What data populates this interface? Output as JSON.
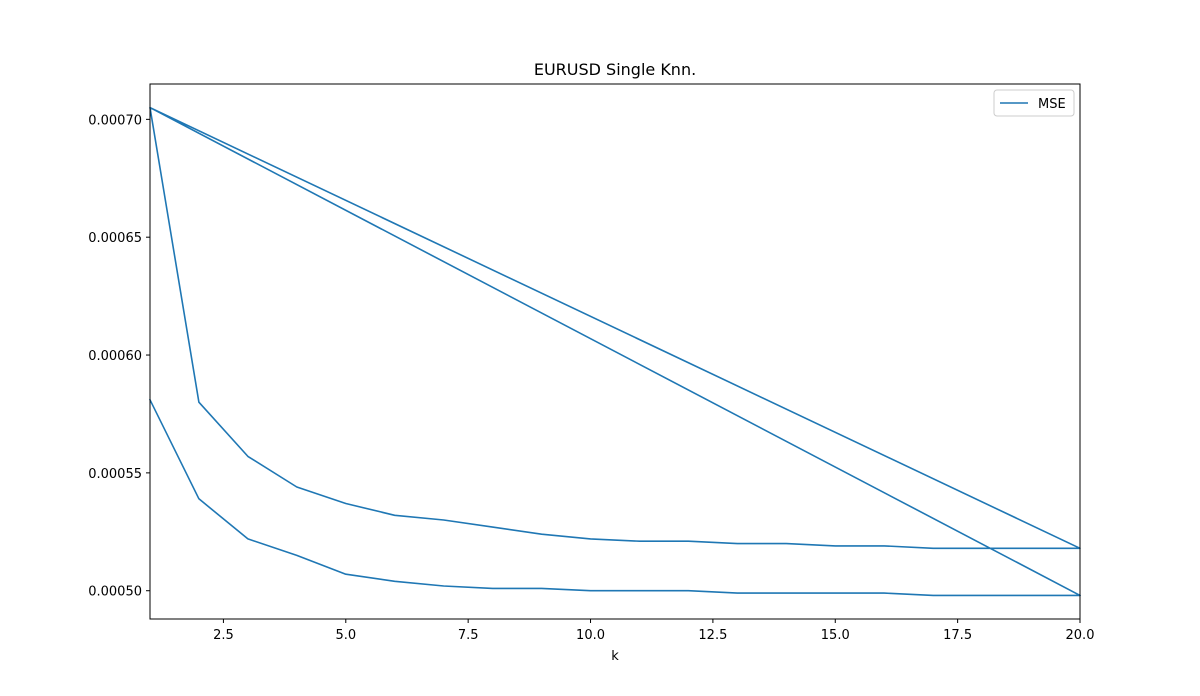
{
  "chart_data": {
    "type": "line",
    "title": "EURUSD Single Knn.",
    "xlabel": "k",
    "ylabel": "",
    "xlim": [
      1,
      20
    ],
    "ylim": [
      0.000488,
      0.000715
    ],
    "x_ticks": [
      2.5,
      5.0,
      7.5,
      10.0,
      12.5,
      15.0,
      17.5,
      20.0
    ],
    "x_tick_labels": [
      "2.5",
      "5.0",
      "7.5",
      "10.0",
      "12.5",
      "15.0",
      "17.5",
      "20.0"
    ],
    "y_ticks": [
      0.0005,
      0.00055,
      0.0006,
      0.00065,
      0.0007
    ],
    "y_tick_labels": [
      "0.00050",
      "0.00055",
      "0.00060",
      "0.00065",
      "0.00070"
    ],
    "grid": false,
    "legend_position": "top-right",
    "series": [
      {
        "name": "MSE",
        "color": "#1f77b4",
        "points": [
          [
            1,
            0.000581
          ],
          [
            2,
            0.000539
          ],
          [
            3,
            0.000522
          ],
          [
            4,
            0.000515
          ],
          [
            5,
            0.000507
          ],
          [
            6,
            0.000504
          ],
          [
            7,
            0.000502
          ],
          [
            8,
            0.000501
          ],
          [
            9,
            0.000501
          ],
          [
            10,
            0.0005
          ],
          [
            11,
            0.0005
          ],
          [
            12,
            0.0005
          ],
          [
            13,
            0.000499
          ],
          [
            14,
            0.000499
          ],
          [
            15,
            0.000499
          ],
          [
            16,
            0.000499
          ],
          [
            17,
            0.000498
          ],
          [
            18,
            0.000498
          ],
          [
            19,
            0.000498
          ],
          [
            20,
            0.000498
          ],
          [
            1,
            0.000705
          ],
          [
            2,
            0.00058
          ],
          [
            3,
            0.000557
          ],
          [
            4,
            0.000544
          ],
          [
            5,
            0.000537
          ],
          [
            6,
            0.000532
          ],
          [
            7,
            0.00053
          ],
          [
            8,
            0.000527
          ],
          [
            9,
            0.000524
          ],
          [
            10,
            0.000522
          ],
          [
            11,
            0.000521
          ],
          [
            12,
            0.000521
          ],
          [
            13,
            0.00052
          ],
          [
            14,
            0.00052
          ],
          [
            15,
            0.000519
          ],
          [
            16,
            0.000519
          ],
          [
            17,
            0.000518
          ],
          [
            18,
            0.000518
          ],
          [
            19,
            0.000518
          ],
          [
            20,
            0.000518
          ],
          [
            1,
            0.000705
          ],
          [
            20,
            0.000498
          ]
        ]
      }
    ]
  }
}
